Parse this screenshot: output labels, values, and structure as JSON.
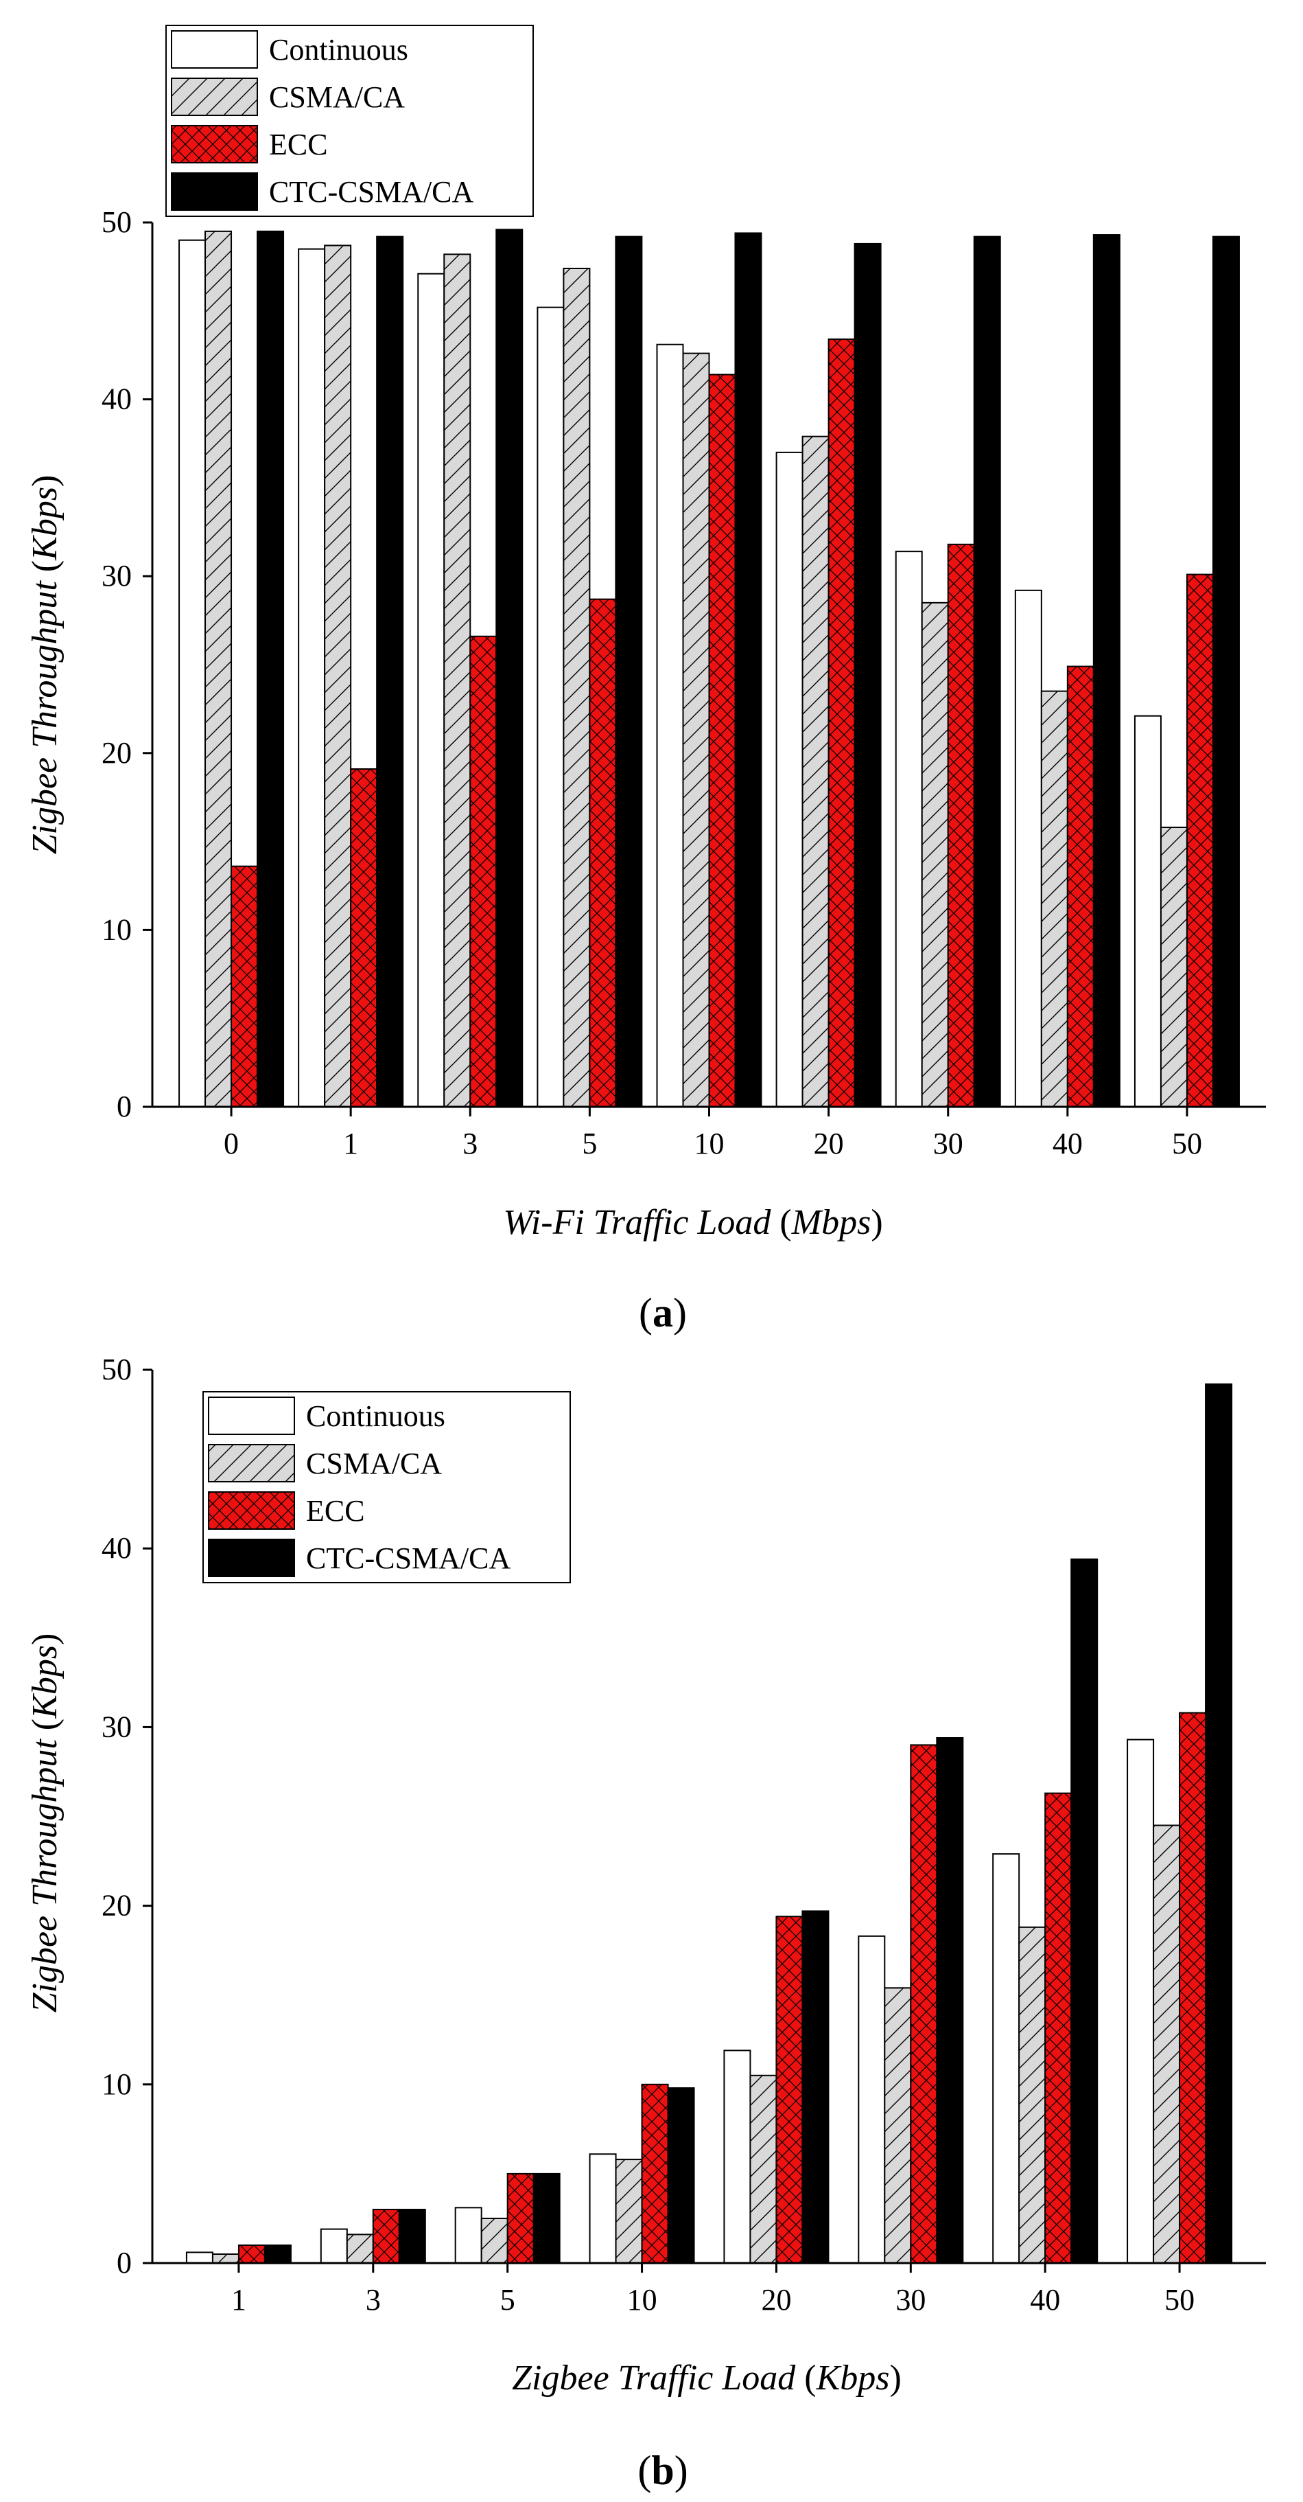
{
  "legend_entries": [
    {
      "name": "Continuous",
      "pattern": "plain"
    },
    {
      "name": "CSMA/CA",
      "pattern": "hatch"
    },
    {
      "name": "ECC",
      "pattern": "cross"
    },
    {
      "name": "CTC-CSMA/CA",
      "pattern": "solid"
    }
  ],
  "colors": {
    "continuous": "#ffffff",
    "csma": "#d9d9d9",
    "ecc": "#ee1111",
    "ctc": "#000000",
    "axis": "#000000"
  },
  "chart_data": [
    {
      "type": "bar",
      "panel_label": "a",
      "title": "",
      "xlabel": {
        "base": "Wi-Fi Traffic Load",
        "unit": "Mbps"
      },
      "ylabel": {
        "base": "Zigbee Throughput",
        "unit": "Kbps"
      },
      "ylim": [
        0,
        50
      ],
      "yticks": [
        "0",
        "10",
        "20",
        "30",
        "40",
        "50"
      ],
      "categories": [
        "0",
        "1",
        "3",
        "5",
        "10",
        "20",
        "30",
        "40",
        "50"
      ],
      "legend_position": "top-left",
      "series": [
        {
          "name": "Continuous",
          "values": [
            49.0,
            48.5,
            47.1,
            45.2,
            43.1,
            37.0,
            31.4,
            29.2,
            22.1
          ]
        },
        {
          "name": "CSMA/CA",
          "values": [
            49.5,
            48.7,
            48.2,
            47.4,
            42.6,
            37.9,
            28.5,
            23.5,
            15.8
          ]
        },
        {
          "name": "ECC",
          "values": [
            13.6,
            19.1,
            26.6,
            28.7,
            41.4,
            43.4,
            31.8,
            24.9,
            30.1
          ]
        },
        {
          "name": "CTC-CSMA/CA",
          "values": [
            49.5,
            49.2,
            49.6,
            49.2,
            49.4,
            48.8,
            49.2,
            49.3,
            49.2
          ]
        }
      ]
    },
    {
      "type": "bar",
      "panel_label": "b",
      "title": "",
      "xlabel": {
        "base": "Zigbee Traffic Load",
        "unit": "Kbps"
      },
      "ylabel": {
        "base": "Zigbee Throughput",
        "unit": "Kbps"
      },
      "ylim": [
        0,
        50
      ],
      "yticks": [
        "0",
        "10",
        "20",
        "30",
        "40",
        "50"
      ],
      "categories": [
        "1",
        "3",
        "5",
        "10",
        "20",
        "30",
        "40",
        "50"
      ],
      "legend_position": "top-left",
      "series": [
        {
          "name": "Continuous",
          "values": [
            0.6,
            1.9,
            3.1,
            6.1,
            11.9,
            18.3,
            22.9,
            29.3
          ]
        },
        {
          "name": "CSMA/CA",
          "values": [
            0.5,
            1.6,
            2.5,
            5.8,
            10.5,
            15.4,
            18.8,
            24.5
          ]
        },
        {
          "name": "ECC",
          "values": [
            1.0,
            3.0,
            5.0,
            10.0,
            19.4,
            29.0,
            26.3,
            30.8
          ]
        },
        {
          "name": "CTC-CSMA/CA",
          "values": [
            1.0,
            3.0,
            5.0,
            9.8,
            19.7,
            29.4,
            39.4,
            49.2
          ]
        }
      ]
    }
  ]
}
